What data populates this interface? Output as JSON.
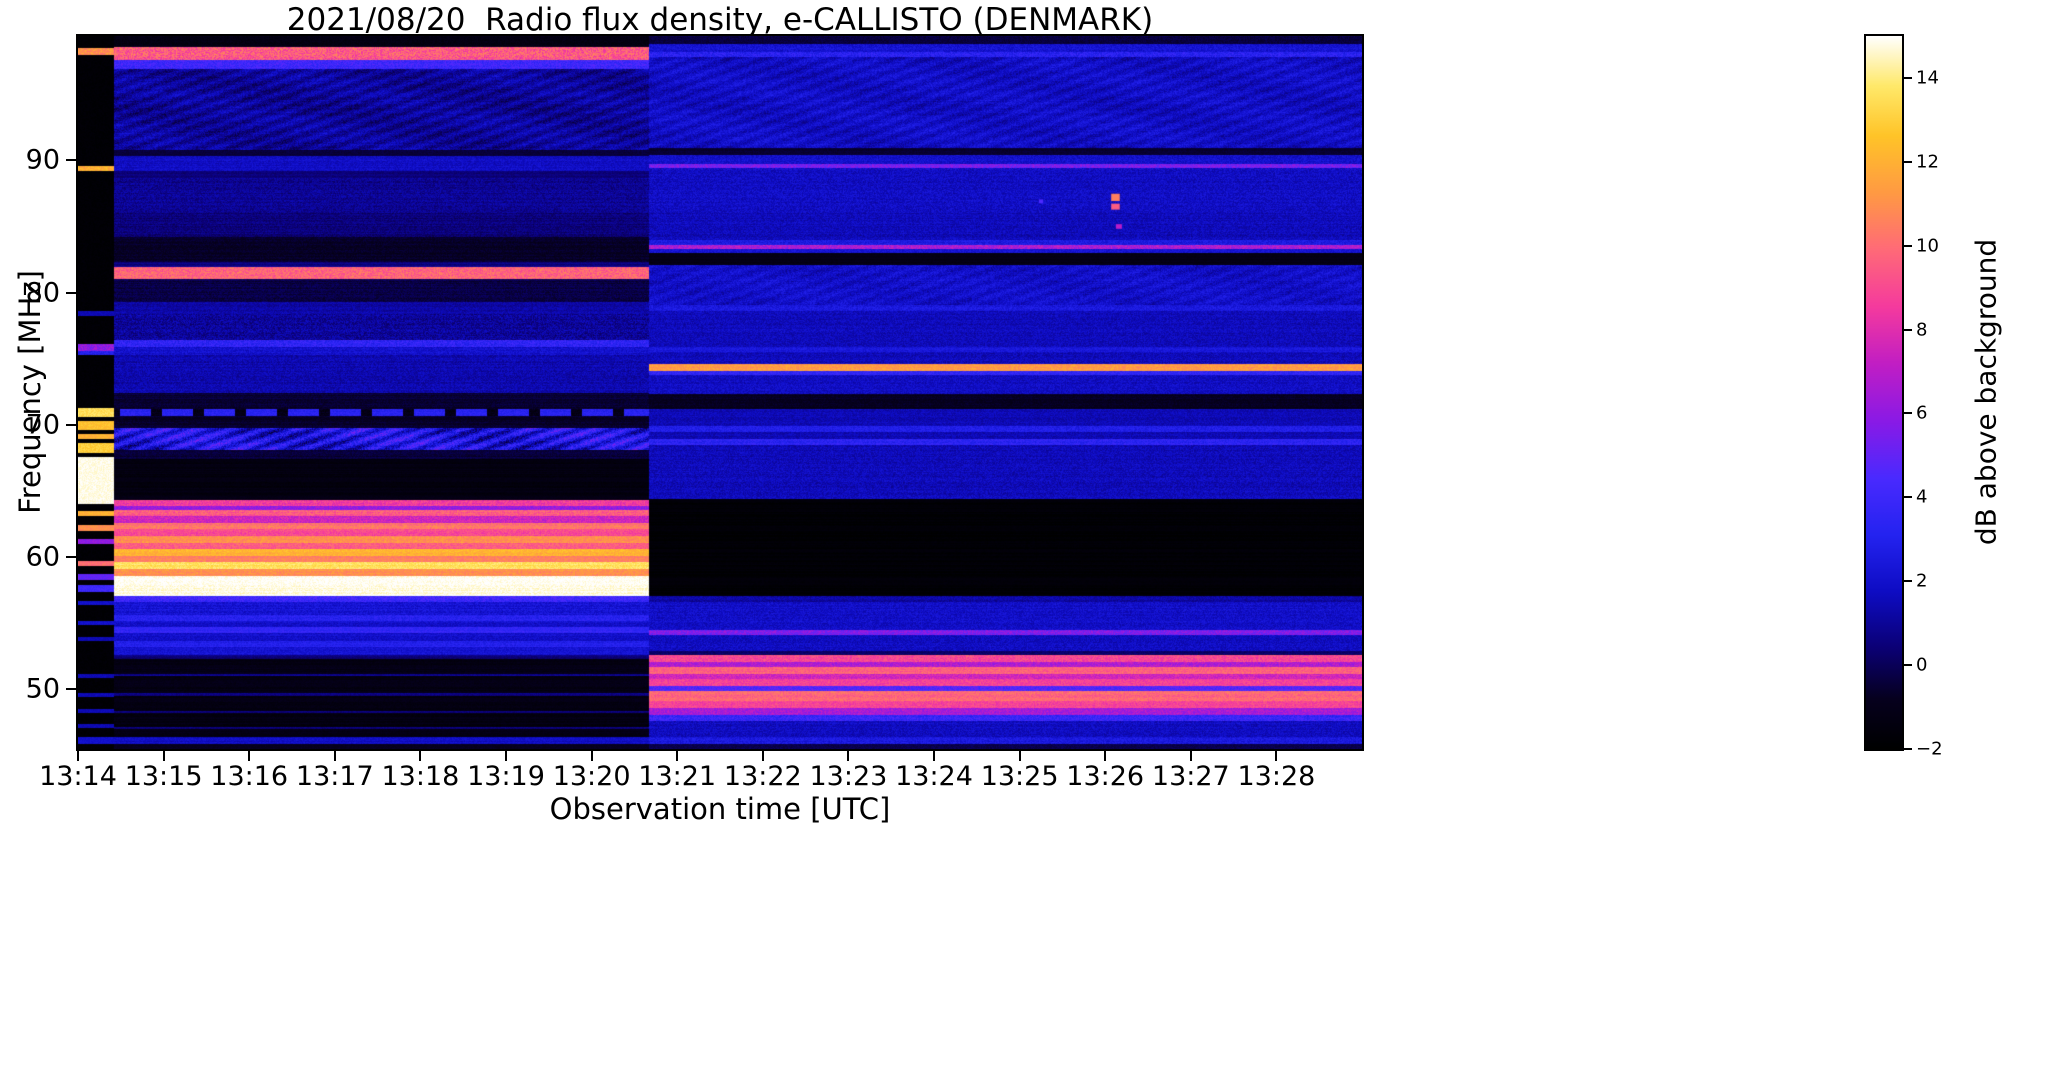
{
  "chart_data": {
    "type": "heatmap",
    "title": "2021/08/20  Radio flux density, e-CALLISTO (DENMARK)",
    "xlabel": "Observation time [UTC]",
    "ylabel": "Frequency [MHz]",
    "legend_position": "right-colorbar",
    "grid": false,
    "x_range_minutes": [
      0,
      15
    ],
    "x_ticks": [
      {
        "label": "13:14",
        "minute": 0
      },
      {
        "label": "13:15",
        "minute": 1
      },
      {
        "label": "13:16",
        "minute": 2
      },
      {
        "label": "13:17",
        "minute": 3
      },
      {
        "label": "13:18",
        "minute": 4
      },
      {
        "label": "13:19",
        "minute": 5
      },
      {
        "label": "13:20",
        "minute": 6
      },
      {
        "label": "13:21",
        "minute": 7
      },
      {
        "label": "13:22",
        "minute": 8
      },
      {
        "label": "13:23",
        "minute": 9
      },
      {
        "label": "13:24",
        "minute": 10
      },
      {
        "label": "13:25",
        "minute": 11
      },
      {
        "label": "13:26",
        "minute": 12
      },
      {
        "label": "13:27",
        "minute": 13
      },
      {
        "label": "13:28",
        "minute": 14
      }
    ],
    "y_range_mhz": [
      99.4,
      45.5
    ],
    "y_ticks": [
      {
        "label": "90",
        "f": 90
      },
      {
        "label": "80",
        "f": 80
      },
      {
        "label": "70",
        "f": 70
      },
      {
        "label": "60",
        "f": 60
      },
      {
        "label": "50",
        "f": 50
      }
    ],
    "colorbar": {
      "label": "dB above background",
      "vmin": -2,
      "vmax": 15,
      "ticks": [
        {
          "label": "−2",
          "v": -2
        },
        {
          "label": "0",
          "v": 0
        },
        {
          "label": "2",
          "v": 2
        },
        {
          "label": "4",
          "v": 4
        },
        {
          "label": "6",
          "v": 6
        },
        {
          "label": "8",
          "v": 8
        },
        {
          "label": "10",
          "v": 10
        },
        {
          "label": "12",
          "v": 12
        },
        {
          "label": "14",
          "v": 14
        }
      ]
    },
    "colormap": {
      "name": "gnuplot2-like",
      "stops": [
        [
          0.0,
          "#000000"
        ],
        [
          0.07,
          "#06001e"
        ],
        [
          0.14,
          "#0b0073"
        ],
        [
          0.22,
          "#0e0cc3"
        ],
        [
          0.3,
          "#2423f0"
        ],
        [
          0.38,
          "#4a2aff"
        ],
        [
          0.46,
          "#8a1ae6"
        ],
        [
          0.54,
          "#c11ec4"
        ],
        [
          0.62,
          "#f53a9e"
        ],
        [
          0.7,
          "#ff6a78"
        ],
        [
          0.78,
          "#ff9a43"
        ],
        [
          0.86,
          "#ffc428"
        ],
        [
          0.93,
          "#ffe96a"
        ],
        [
          1.0,
          "#ffffff"
        ]
      ]
    },
    "bands_format": "[freq_hi_MHz, freq_lo_MHz, value_dB, noise_dB, {wave?,dash?}]",
    "segments": [
      {
        "name": "startup-strip",
        "t0": 0,
        "t1": 0.42,
        "bg": -1.8,
        "bgn": 0.15,
        "stripe": 0,
        "bands": [
          [
            98.5,
            98.0,
            11,
            1.0
          ],
          [
            89.6,
            89.2,
            12,
            0.8
          ],
          [
            78.6,
            78.2,
            1.5,
            0.3
          ],
          [
            76.1,
            75.6,
            6,
            1.0
          ],
          [
            75.6,
            75.3,
            3,
            0.5
          ],
          [
            71.3,
            70.6,
            13.5,
            0.5
          ],
          [
            70.3,
            69.6,
            12.5,
            0.5
          ],
          [
            69.3,
            68.9,
            12,
            0.5
          ],
          [
            68.6,
            67.9,
            13,
            0.5
          ],
          [
            67.6,
            64.0,
            14.8,
            0.3
          ],
          [
            63.5,
            63.1,
            12,
            0.5
          ],
          [
            62.4,
            62.0,
            11,
            0.5
          ],
          [
            61.4,
            61.0,
            6,
            0.5
          ],
          [
            59.7,
            59.3,
            10,
            0.5
          ],
          [
            58.7,
            58.3,
            5,
            0.5
          ],
          [
            57.9,
            57.4,
            4,
            0.5
          ],
          [
            56.7,
            56.4,
            2,
            0.3
          ],
          [
            55.2,
            54.9,
            2,
            0.3
          ],
          [
            54.0,
            53.7,
            1.5,
            0.3
          ],
          [
            51.2,
            50.9,
            1.5,
            0.3
          ],
          [
            49.7,
            49.4,
            1.5,
            0.3
          ],
          [
            48.5,
            48.2,
            1.5,
            0.3
          ],
          [
            47.4,
            47.1,
            1.5,
            0.3
          ],
          [
            46.4,
            45.9,
            2,
            0.3
          ]
        ]
      },
      {
        "name": "scan-a",
        "t0": 0.42,
        "t1": 6.67,
        "bg": -1.2,
        "bgn": 0.35,
        "stripe": 0.5,
        "bands": [
          [
            98.6,
            97.6,
            9.5,
            1.3
          ],
          [
            97.6,
            96.9,
            4.0,
            0.8
          ],
          [
            96.9,
            90.8,
            1.0,
            0.7,
            {
              "wave": 0.5
            }
          ],
          [
            90.8,
            90.3,
            -0.5,
            0.2
          ],
          [
            90.3,
            89.2,
            1.8,
            0.5
          ],
          [
            89.2,
            88.7,
            0.5,
            0.3
          ],
          [
            88.7,
            86.0,
            0.9,
            0.6
          ],
          [
            86.0,
            84.2,
            0.5,
            0.5
          ],
          [
            84.2,
            82.3,
            -0.7,
            0.3
          ],
          [
            82.3,
            81.9,
            0.6,
            0.3
          ],
          [
            81.9,
            81.0,
            9.8,
            1.0
          ],
          [
            81.0,
            79.3,
            -0.3,
            0.4
          ],
          [
            79.3,
            78.4,
            1.3,
            0.5
          ],
          [
            78.4,
            76.4,
            1.0,
            0.8
          ],
          [
            76.4,
            75.9,
            3.5,
            0.8
          ],
          [
            75.9,
            75.3,
            2.0,
            0.6
          ],
          [
            75.3,
            72.4,
            1.4,
            0.6
          ],
          [
            72.4,
            71.2,
            -0.5,
            0.3
          ],
          [
            71.2,
            70.7,
            3.2,
            0.5,
            {
              "dash": 1
            }
          ],
          [
            70.7,
            69.8,
            -0.7,
            0.3
          ],
          [
            69.8,
            68.1,
            2.6,
            1.2,
            {
              "wave": 1.3
            }
          ],
          [
            68.1,
            67.4,
            -0.4,
            0.3
          ],
          [
            67.4,
            64.3,
            -1.4,
            0.2
          ],
          [
            64.3,
            63.9,
            8.5,
            0.8
          ],
          [
            63.9,
            63.6,
            6.0,
            0.8
          ],
          [
            63.6,
            63.1,
            9.5,
            0.8
          ],
          [
            63.1,
            62.6,
            7.5,
            0.8
          ],
          [
            62.6,
            62.1,
            10.2,
            0.7
          ],
          [
            62.1,
            61.6,
            9.0,
            0.7
          ],
          [
            61.6,
            61.1,
            11.0,
            0.7
          ],
          [
            61.1,
            60.6,
            9.5,
            0.7
          ],
          [
            60.6,
            60.1,
            12.0,
            0.6
          ],
          [
            60.1,
            59.6,
            10.5,
            0.6
          ],
          [
            59.6,
            59.1,
            13.5,
            0.5
          ],
          [
            59.1,
            58.6,
            11.0,
            0.6
          ],
          [
            58.6,
            57.1,
            14.8,
            0.4
          ],
          [
            57.1,
            56.6,
            4.0,
            0.8
          ],
          [
            56.6,
            55.6,
            2.2,
            0.6
          ],
          [
            55.6,
            55.2,
            3.2,
            0.6
          ],
          [
            55.2,
            54.7,
            2.0,
            0.5
          ],
          [
            54.7,
            54.3,
            3.5,
            0.5
          ],
          [
            54.3,
            53.7,
            2.0,
            0.5
          ],
          [
            53.7,
            53.2,
            3.0,
            0.5
          ],
          [
            53.2,
            52.6,
            2.2,
            0.5
          ],
          [
            52.6,
            52.3,
            0.5,
            0.3
          ],
          [
            52.3,
            51.2,
            -1.2,
            0.25
          ],
          [
            51.2,
            51.0,
            0.8,
            0.3
          ],
          [
            51.0,
            49.7,
            -1.3,
            0.25
          ],
          [
            49.7,
            49.5,
            0.6,
            0.3
          ],
          [
            49.5,
            48.4,
            -1.3,
            0.25
          ],
          [
            48.4,
            48.2,
            0.6,
            0.3
          ],
          [
            48.2,
            47.2,
            -1.3,
            0.25
          ],
          [
            47.2,
            47.0,
            0.5,
            0.3
          ],
          [
            47.0,
            46.4,
            -1.1,
            0.25
          ],
          [
            46.4,
            45.9,
            1.8,
            0.4
          ],
          [
            45.9,
            45.5,
            -1.0,
            0.2
          ]
        ]
      },
      {
        "name": "scan-b",
        "t0": 6.67,
        "t1": 15.0,
        "bg": 1.6,
        "bgn": 0.55,
        "stripe": 0.4,
        "bands": [
          [
            99.4,
            98.8,
            -0.3,
            0.3
          ],
          [
            98.8,
            98.2,
            2.2,
            0.6
          ],
          [
            98.2,
            97.8,
            3.2,
            0.8
          ],
          [
            97.8,
            90.9,
            1.8,
            0.65,
            {
              "wave": 0.4
            }
          ],
          [
            90.9,
            90.4,
            -0.6,
            0.2
          ],
          [
            90.4,
            89.7,
            2.0,
            0.6
          ],
          [
            89.7,
            89.4,
            5.5,
            0.8
          ],
          [
            89.4,
            86.0,
            1.8,
            0.65
          ],
          [
            86.0,
            84.0,
            1.6,
            0.6
          ],
          [
            84.0,
            83.6,
            2.6,
            0.6
          ],
          [
            83.6,
            83.3,
            6.8,
            0.9
          ],
          [
            83.3,
            83.0,
            2.2,
            0.5
          ],
          [
            83.0,
            82.1,
            -1.2,
            0.2
          ],
          [
            82.1,
            79.1,
            1.9,
            0.65,
            {
              "wave": 0.3
            }
          ],
          [
            79.1,
            78.6,
            2.6,
            0.6
          ],
          [
            78.6,
            75.9,
            1.6,
            0.6
          ],
          [
            75.9,
            75.5,
            2.4,
            0.5
          ],
          [
            75.5,
            74.6,
            1.6,
            0.6
          ],
          [
            74.6,
            74.1,
            11.3,
            0.7
          ],
          [
            74.1,
            73.8,
            3.5,
            0.6
          ],
          [
            73.8,
            72.3,
            1.8,
            0.6
          ],
          [
            72.3,
            71.2,
            -0.8,
            0.3
          ],
          [
            71.2,
            69.9,
            1.5,
            0.5
          ],
          [
            69.9,
            69.5,
            2.8,
            0.6
          ],
          [
            69.5,
            68.9,
            1.5,
            0.5
          ],
          [
            68.9,
            68.5,
            3.3,
            0.6
          ],
          [
            68.5,
            64.4,
            1.6,
            0.6
          ],
          [
            64.4,
            57.1,
            -1.8,
            0.12
          ],
          [
            57.1,
            56.6,
            1.2,
            0.5
          ],
          [
            56.6,
            54.5,
            1.9,
            0.6
          ],
          [
            54.5,
            54.1,
            5.6,
            0.8
          ],
          [
            54.1,
            52.9,
            1.8,
            0.6
          ],
          [
            52.9,
            52.6,
            0.2,
            0.3
          ],
          [
            52.6,
            52.1,
            9.0,
            0.8
          ],
          [
            52.1,
            51.7,
            6.8,
            0.8
          ],
          [
            51.7,
            51.2,
            9.6,
            0.7
          ],
          [
            51.2,
            50.8,
            7.6,
            0.7
          ],
          [
            50.8,
            50.3,
            8.6,
            0.7
          ],
          [
            50.3,
            49.9,
            4.6,
            0.8
          ],
          [
            49.9,
            49.1,
            9.8,
            0.7
          ],
          [
            49.1,
            48.6,
            8.8,
            0.7
          ],
          [
            48.6,
            48.1,
            6.6,
            0.8
          ],
          [
            48.1,
            47.6,
            3.8,
            0.8
          ],
          [
            47.6,
            46.4,
            1.8,
            0.6
          ],
          [
            46.4,
            45.9,
            2.5,
            0.6
          ],
          [
            45.9,
            45.5,
            -0.3,
            0.3
          ]
        ]
      }
    ],
    "spots_format": "[t_min, freq_MHz, width_min, height_MHz, value_dB]",
    "spots": [
      [
        12.12,
        87.2,
        0.1,
        0.55,
        10.5
      ],
      [
        12.12,
        86.5,
        0.1,
        0.45,
        9.5
      ],
      [
        12.16,
        85.0,
        0.07,
        0.35,
        7.0
      ],
      [
        11.25,
        86.9,
        0.05,
        0.3,
        4.5
      ]
    ]
  }
}
